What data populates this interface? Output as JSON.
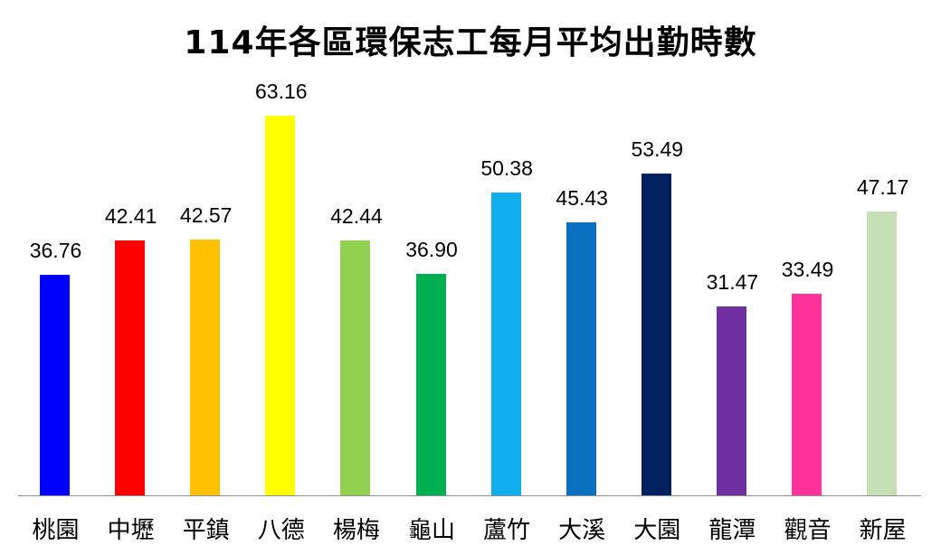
{
  "chart_data": {
    "type": "bar",
    "title": "114年各區環保志工每月平均出勤時數",
    "xlabel": "",
    "ylabel": "",
    "ylim": [
      0,
      66
    ],
    "grid": false,
    "legend": null,
    "categories": [
      "桃園",
      "中壢",
      "平鎮",
      "八德",
      "楊梅",
      "龜山",
      "蘆竹",
      "大溪",
      "大園",
      "龍潭",
      "觀音",
      "新屋"
    ],
    "values": [
      36.76,
      42.41,
      42.57,
      63.16,
      42.44,
      36.9,
      50.38,
      45.43,
      53.49,
      31.47,
      33.49,
      47.17
    ],
    "value_labels": [
      "36.76",
      "42.41",
      "42.57",
      "63.16",
      "42.44",
      "36.90",
      "50.38",
      "45.43",
      "53.49",
      "31.47",
      "33.49",
      "47.17"
    ],
    "colors": [
      "#0000ff",
      "#ff0000",
      "#ffc000",
      "#ffff00",
      "#92d050",
      "#00b050",
      "#10aeee",
      "#0a70c0",
      "#002060",
      "#7030a0",
      "#ff3399",
      "#c5e0b4"
    ]
  }
}
